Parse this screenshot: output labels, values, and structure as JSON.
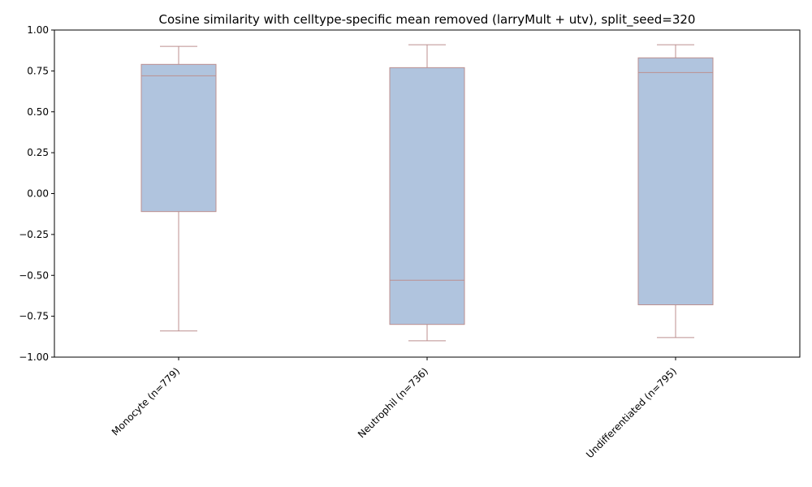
{
  "chart_data": {
    "type": "box",
    "title": "Cosine similarity with celltype-specific mean removed (larryMult + utv), split_seed=320",
    "xlabel": "",
    "ylabel": "",
    "ylim": [
      -1.0,
      1.0
    ],
    "yticks": [
      -1.0,
      -0.75,
      -0.5,
      -0.25,
      0.0,
      0.25,
      0.5,
      0.75,
      1.0
    ],
    "ytick_labels": [
      "−1.00",
      "−0.75",
      "−0.50",
      "−0.25",
      "0.00",
      "0.25",
      "0.50",
      "0.75",
      "1.00"
    ],
    "grid": false,
    "categories": [
      "Monocyte (n=779)",
      "Neutrophil (n=736)",
      "Undifferentiated (n=795)"
    ],
    "boxes": [
      {
        "whislo": -0.84,
        "q1": -0.11,
        "med": 0.72,
        "q3": 0.79,
        "whishi": 0.9
      },
      {
        "whislo": -0.9,
        "q1": -0.8,
        "med": -0.53,
        "q3": 0.77,
        "whishi": 0.91
      },
      {
        "whislo": -0.88,
        "q1": -0.68,
        "med": 0.74,
        "q3": 0.83,
        "whishi": 0.91
      }
    ],
    "colors": {
      "box_fill": "#b0c4de",
      "box_edge": "#bc8f8f"
    }
  }
}
